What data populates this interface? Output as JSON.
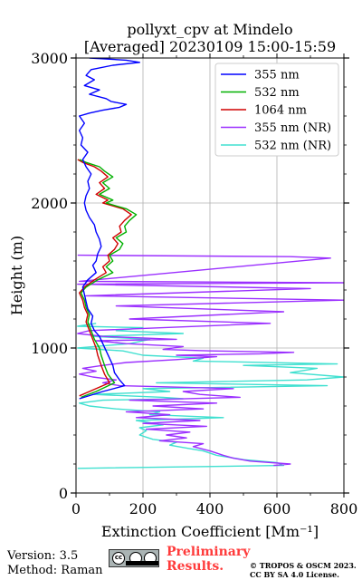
{
  "chart_data": {
    "type": "line",
    "title": [
      "pollyxt_cpv at Mindelo",
      "[Averaged] 20230109 15:00-15:59"
    ],
    "xlabel": "Extinction Coefficient [Mm⁻¹]",
    "ylabel": "Height (m)",
    "xlim": [
      0,
      800
    ],
    "ylim": [
      0,
      3000
    ],
    "xticks": [
      "0",
      "200",
      "400",
      "600",
      "800"
    ],
    "yticks": [
      "0",
      "1000",
      "2000",
      "3000"
    ],
    "grid": true,
    "legend_position": "top-right",
    "series": [
      {
        "name": "355 nm",
        "color": "#0000ff",
        "points": [
          [
            10,
            650
          ],
          [
            80,
            700
          ],
          [
            145,
            740
          ],
          [
            130,
            780
          ],
          [
            115,
            830
          ],
          [
            110,
            880
          ],
          [
            100,
            930
          ],
          [
            90,
            980
          ],
          [
            80,
            1030
          ],
          [
            70,
            1080
          ],
          [
            55,
            1120
          ],
          [
            45,
            1170
          ],
          [
            50,
            1220
          ],
          [
            35,
            1270
          ],
          [
            30,
            1320
          ],
          [
            25,
            1370
          ],
          [
            20,
            1420
          ],
          [
            35,
            1470
          ],
          [
            60,
            1520
          ],
          [
            50,
            1570
          ],
          [
            60,
            1600
          ],
          [
            65,
            1650
          ],
          [
            75,
            1700
          ],
          [
            70,
            1750
          ],
          [
            60,
            1800
          ],
          [
            55,
            1850
          ],
          [
            40,
            1900
          ],
          [
            30,
            1950
          ],
          [
            25,
            2000
          ],
          [
            30,
            2050
          ],
          [
            40,
            2100
          ],
          [
            35,
            2150
          ],
          [
            45,
            2200
          ],
          [
            30,
            2250
          ],
          [
            20,
            2300
          ],
          [
            35,
            2350
          ],
          [
            15,
            2400
          ],
          [
            20,
            2450
          ],
          [
            10,
            2500
          ],
          [
            25,
            2550
          ],
          [
            10,
            2600
          ],
          [
            40,
            2620
          ],
          [
            80,
            2640
          ],
          [
            130,
            2660
          ],
          [
            150,
            2680
          ],
          [
            105,
            2700
          ],
          [
            90,
            2720
          ],
          [
            40,
            2750
          ],
          [
            70,
            2780
          ],
          [
            25,
            2810
          ],
          [
            55,
            2850
          ],
          [
            30,
            2880
          ],
          [
            45,
            2920
          ],
          [
            110,
            2950
          ],
          [
            190,
            2970
          ],
          [
            150,
            2985
          ],
          [
            40,
            3000
          ]
        ]
      },
      {
        "name": "532 nm",
        "color": "#00b000",
        "points": [
          [
            15,
            660
          ],
          [
            60,
            700
          ],
          [
            115,
            760
          ],
          [
            95,
            820
          ],
          [
            85,
            880
          ],
          [
            75,
            950
          ],
          [
            70,
            1000
          ],
          [
            55,
            1060
          ],
          [
            45,
            1120
          ],
          [
            35,
            1180
          ],
          [
            40,
            1230
          ],
          [
            30,
            1280
          ],
          [
            25,
            1330
          ],
          [
            15,
            1380
          ],
          [
            30,
            1420
          ],
          [
            65,
            1470
          ],
          [
            110,
            1520
          ],
          [
            90,
            1560
          ],
          [
            110,
            1600
          ],
          [
            100,
            1640
          ],
          [
            130,
            1680
          ],
          [
            140,
            1720
          ],
          [
            120,
            1760
          ],
          [
            150,
            1800
          ],
          [
            145,
            1840
          ],
          [
            160,
            1880
          ],
          [
            180,
            1920
          ],
          [
            150,
            1960
          ],
          [
            90,
            2000
          ],
          [
            110,
            2020
          ],
          [
            70,
            2060
          ],
          [
            100,
            2100
          ],
          [
            80,
            2140
          ],
          [
            110,
            2180
          ],
          [
            85,
            2220
          ],
          [
            70,
            2250
          ],
          [
            30,
            2280
          ],
          [
            10,
            2300
          ]
        ]
      },
      {
        "name": "1064 nm",
        "color": "#d00000",
        "points": [
          [
            10,
            670
          ],
          [
            40,
            700
          ],
          [
            100,
            760
          ],
          [
            85,
            820
          ],
          [
            75,
            880
          ],
          [
            65,
            950
          ],
          [
            60,
            1000
          ],
          [
            50,
            1060
          ],
          [
            40,
            1120
          ],
          [
            30,
            1180
          ],
          [
            35,
            1230
          ],
          [
            25,
            1280
          ],
          [
            20,
            1330
          ],
          [
            10,
            1380
          ],
          [
            25,
            1420
          ],
          [
            55,
            1470
          ],
          [
            90,
            1520
          ],
          [
            80,
            1560
          ],
          [
            100,
            1600
          ],
          [
            95,
            1640
          ],
          [
            115,
            1680
          ],
          [
            125,
            1720
          ],
          [
            110,
            1760
          ],
          [
            135,
            1800
          ],
          [
            130,
            1840
          ],
          [
            145,
            1880
          ],
          [
            165,
            1920
          ],
          [
            140,
            1960
          ],
          [
            80,
            2000
          ],
          [
            95,
            2020
          ],
          [
            60,
            2060
          ],
          [
            85,
            2100
          ],
          [
            70,
            2140
          ],
          [
            95,
            2180
          ],
          [
            75,
            2220
          ],
          [
            55,
            2250
          ],
          [
            20,
            2280
          ],
          [
            5,
            2300
          ]
        ]
      },
      {
        "name": "355 nm (NR)",
        "color": "#9b30ff",
        "points": [
          [
            590,
            190
          ],
          [
            640,
            200
          ],
          [
            520,
            220
          ],
          [
            470,
            240
          ],
          [
            440,
            260
          ],
          [
            400,
            290
          ],
          [
            350,
            320
          ],
          [
            380,
            340
          ],
          [
            250,
            360
          ],
          [
            330,
            380
          ],
          [
            270,
            400
          ],
          [
            340,
            420
          ],
          [
            210,
            440
          ],
          [
            390,
            460
          ],
          [
            200,
            480
          ],
          [
            370,
            500
          ],
          [
            180,
            520
          ],
          [
            280,
            540
          ],
          [
            150,
            560
          ],
          [
            380,
            580
          ],
          [
            230,
            600
          ],
          [
            420,
            620
          ],
          [
            160,
            640
          ],
          [
            490,
            660
          ],
          [
            370,
            680
          ],
          [
            320,
            700
          ],
          [
            470,
            720
          ],
          [
            130,
            740
          ],
          [
            80,
            760
          ],
          [
            120,
            780
          ],
          [
            50,
            800
          ],
          [
            10,
            820
          ],
          [
            60,
            840
          ],
          [
            20,
            860
          ],
          [
            80,
            880
          ],
          [
            150,
            900
          ],
          [
            300,
            920
          ],
          [
            420,
            940
          ],
          [
            300,
            950
          ],
          [
            550,
            960
          ],
          [
            650,
            970
          ],
          [
            400,
            980
          ],
          [
            260,
            990
          ],
          [
            320,
            1010
          ],
          [
            150,
            1030
          ],
          [
            60,
            1050
          ],
          [
            300,
            1060
          ],
          [
            80,
            1080
          ],
          [
            5,
            1100
          ],
          [
            40,
            1120
          ],
          [
            580,
            1170
          ],
          [
            160,
            1200
          ],
          [
            620,
            1250
          ],
          [
            120,
            1290
          ],
          [
            800,
            1330
          ],
          [
            30,
            1360
          ],
          [
            700,
            1410
          ],
          [
            5,
            1440
          ],
          [
            800,
            1450
          ],
          [
            10,
            1460
          ],
          [
            760,
            1620
          ],
          [
            640,
            1630
          ],
          [
            5,
            1640
          ]
        ]
      },
      {
        "name": "532 nm (NR)",
        "color": "#40e0d0",
        "points": [
          [
            5,
            170
          ],
          [
            620,
            190
          ],
          [
            600,
            210
          ],
          [
            500,
            230
          ],
          [
            420,
            260
          ],
          [
            380,
            290
          ],
          [
            330,
            310
          ],
          [
            280,
            330
          ],
          [
            300,
            350
          ],
          [
            230,
            370
          ],
          [
            190,
            400
          ],
          [
            210,
            430
          ],
          [
            190,
            450
          ],
          [
            260,
            470
          ],
          [
            180,
            500
          ],
          [
            440,
            520
          ],
          [
            220,
            540
          ],
          [
            250,
            560
          ],
          [
            120,
            580
          ],
          [
            40,
            600
          ],
          [
            10,
            620
          ],
          [
            80,
            640
          ],
          [
            320,
            650
          ],
          [
            260,
            660
          ],
          [
            50,
            680
          ],
          [
            280,
            700
          ],
          [
            200,
            720
          ],
          [
            750,
            740
          ],
          [
            240,
            760
          ],
          [
            690,
            780
          ],
          [
            800,
            800
          ],
          [
            640,
            830
          ],
          [
            720,
            860
          ],
          [
            500,
            880
          ],
          [
            780,
            890
          ],
          [
            350,
            910
          ],
          [
            380,
            930
          ],
          [
            200,
            950
          ],
          [
            140,
            980
          ],
          [
            5,
            1000
          ],
          [
            160,
            1030
          ],
          [
            220,
            1060
          ],
          [
            50,
            1080
          ],
          [
            320,
            1100
          ],
          [
            120,
            1120
          ],
          [
            200,
            1140
          ],
          [
            5,
            1150
          ],
          [
            60,
            1170
          ]
        ]
      }
    ]
  },
  "footer": {
    "version": "Version: 3.5",
    "method": "Method: Raman",
    "prelim_line1": "Preliminary",
    "prelim_line2": "Results.",
    "copyright_line1": "© TROPOS & OSCM 2023.",
    "copyright_line2": "CC BY SA 4.0 License.",
    "cc_badge": [
      "cc",
      "BY",
      "SA"
    ]
  }
}
